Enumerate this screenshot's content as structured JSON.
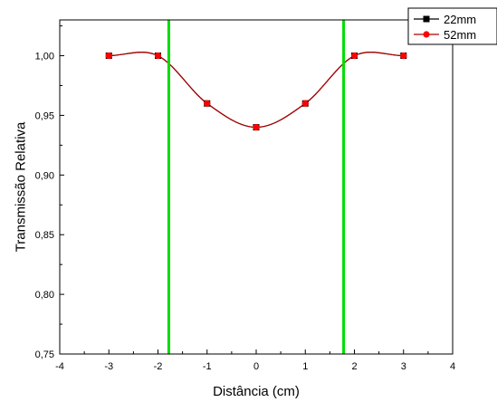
{
  "chart_data": {
    "type": "line",
    "title": "",
    "xlabel": "Distância (cm)",
    "ylabel": "Transmissão Relativa",
    "xlim": [
      -4,
      4
    ],
    "ylim": [
      0.75,
      1.03
    ],
    "xticks": [
      -4,
      -3,
      -2,
      -1,
      0,
      1,
      2,
      3,
      4
    ],
    "xtick_labels": [
      "-4",
      "-3",
      "-2",
      "-1",
      "0",
      "1",
      "2",
      "3",
      "4"
    ],
    "yticks": [
      0.75,
      0.8,
      0.85,
      0.9,
      0.95,
      1.0
    ],
    "ytick_labels": [
      "0,75",
      "0,80",
      "0,85",
      "0,90",
      "0,95",
      "1,00"
    ],
    "grid": false,
    "legend_position": "top-right",
    "series": [
      {
        "name": "22mm",
        "color": "#000000",
        "marker": "square",
        "x": [
          -3,
          -2,
          -1,
          0,
          1,
          2,
          3
        ],
        "y": [
          1.0,
          1.0,
          0.96,
          0.94,
          0.96,
          1.0,
          1.0
        ]
      },
      {
        "name": "52mm",
        "color": "#ff0000",
        "line_color": "#b00000",
        "marker": "circle",
        "x": [
          -3,
          -2,
          -1,
          0,
          1,
          2,
          3
        ],
        "y": [
          1.0,
          1.0,
          0.96,
          0.94,
          0.96,
          1.0,
          1.0
        ]
      }
    ],
    "vertical_lines": [
      {
        "x": -1.78,
        "color": "#00dd00"
      },
      {
        "x": 1.78,
        "color": "#00dd00"
      }
    ]
  }
}
